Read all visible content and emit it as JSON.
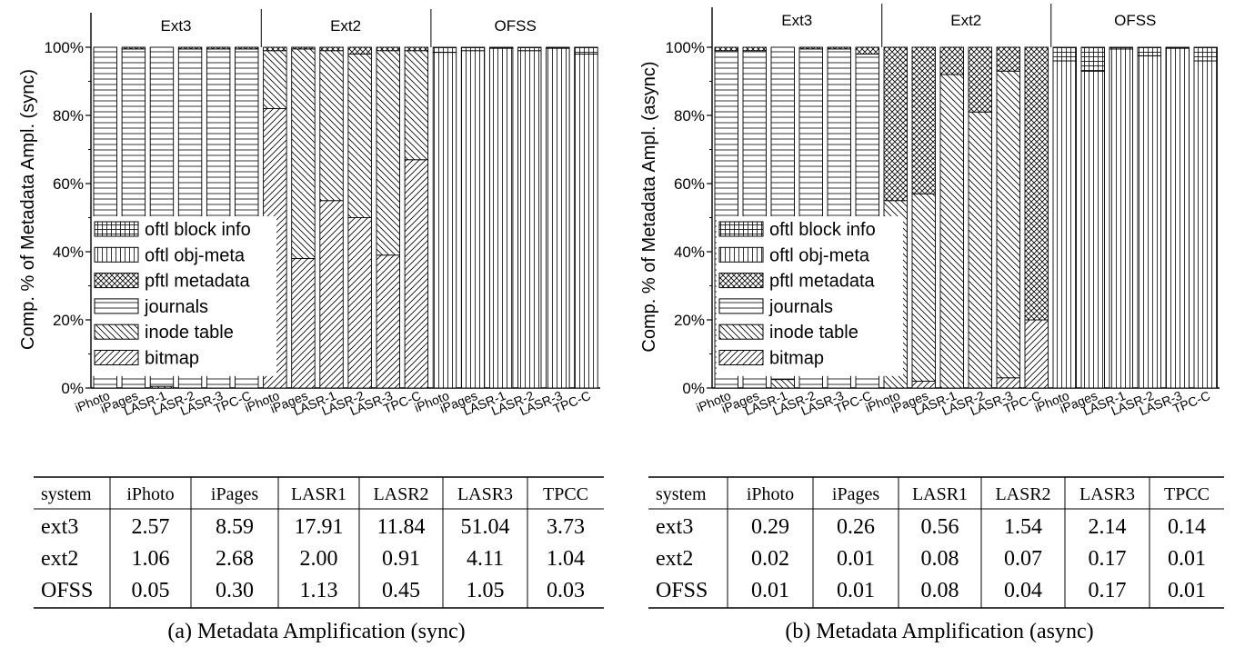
{
  "colors": {
    "ink": "#000000",
    "background": "#ffffff"
  },
  "chart_data": [
    {
      "type": "bar",
      "stacked": true,
      "panel": "a",
      "caption": "(a) Metadata Amplification (sync)",
      "ylabel": "Comp. % of Metadata Ampl. (sync)",
      "ylim": [
        0,
        100
      ],
      "yticks": [
        "0%",
        "20%",
        "40%",
        "60%",
        "80%",
        "100%"
      ],
      "groups": [
        "Ext3",
        "Ext2",
        "OFSS"
      ],
      "categories": [
        "iPhoto",
        "iPages",
        "LASR-1",
        "LASR-2",
        "LASR-3",
        "TPC-C"
      ],
      "legend": {
        "placement": "lower-left",
        "entries": [
          "oftl block info",
          "oftl obj-meta",
          "pftl metadata",
          "journals",
          "inode table",
          "bitmap"
        ]
      },
      "bars": [
        {
          "group": "Ext3",
          "category": "iPhoto",
          "bitmap": 0,
          "inode table": 0,
          "journals": 100,
          "pftl metadata": 0,
          "oftl obj-meta": 0,
          "oftl block info": 0
        },
        {
          "group": "Ext3",
          "category": "iPages",
          "bitmap": 0,
          "inode table": 0,
          "journals": 99.5,
          "pftl metadata": 0.5,
          "oftl obj-meta": 0,
          "oftl block info": 0
        },
        {
          "group": "Ext3",
          "category": "LASR-1",
          "bitmap": 0,
          "inode table": 0.5,
          "journals": 99.5,
          "pftl metadata": 0,
          "oftl obj-meta": 0,
          "oftl block info": 0
        },
        {
          "group": "Ext3",
          "category": "LASR-2",
          "bitmap": 0,
          "inode table": 0,
          "journals": 99.5,
          "pftl metadata": 0.5,
          "oftl obj-meta": 0,
          "oftl block info": 0
        },
        {
          "group": "Ext3",
          "category": "LASR-3",
          "bitmap": 0,
          "inode table": 0,
          "journals": 99.5,
          "pftl metadata": 0.5,
          "oftl obj-meta": 0,
          "oftl block info": 0
        },
        {
          "group": "Ext3",
          "category": "TPC-C",
          "bitmap": 0,
          "inode table": 0,
          "journals": 99.5,
          "pftl metadata": 0.5,
          "oftl obj-meta": 0,
          "oftl block info": 0
        },
        {
          "group": "Ext2",
          "category": "iPhoto",
          "bitmap": 82,
          "inode table": 17,
          "journals": 0,
          "pftl metadata": 1,
          "oftl obj-meta": 0,
          "oftl block info": 0
        },
        {
          "group": "Ext2",
          "category": "iPages",
          "bitmap": 38,
          "inode table": 61.5,
          "journals": 0,
          "pftl metadata": 0.5,
          "oftl obj-meta": 0,
          "oftl block info": 0
        },
        {
          "group": "Ext2",
          "category": "LASR-1",
          "bitmap": 55,
          "inode table": 44,
          "journals": 0,
          "pftl metadata": 1,
          "oftl obj-meta": 0,
          "oftl block info": 0
        },
        {
          "group": "Ext2",
          "category": "LASR-2",
          "bitmap": 50,
          "inode table": 48,
          "journals": 0,
          "pftl metadata": 2,
          "oftl obj-meta": 0,
          "oftl block info": 0
        },
        {
          "group": "Ext2",
          "category": "LASR-3",
          "bitmap": 39,
          "inode table": 60,
          "journals": 0,
          "pftl metadata": 1,
          "oftl obj-meta": 0,
          "oftl block info": 0
        },
        {
          "group": "Ext2",
          "category": "TPC-C",
          "bitmap": 67,
          "inode table": 32,
          "journals": 0,
          "pftl metadata": 1,
          "oftl obj-meta": 0,
          "oftl block info": 0
        },
        {
          "group": "OFSS",
          "category": "iPhoto",
          "bitmap": 0,
          "inode table": 0,
          "journals": 0,
          "pftl metadata": 0,
          "oftl obj-meta": 98.5,
          "oftl block info": 1.5
        },
        {
          "group": "OFSS",
          "category": "iPages",
          "bitmap": 0,
          "inode table": 0,
          "journals": 0,
          "pftl metadata": 0,
          "oftl obj-meta": 99,
          "oftl block info": 1
        },
        {
          "group": "OFSS",
          "category": "LASR-1",
          "bitmap": 0,
          "inode table": 0,
          "journals": 0,
          "pftl metadata": 0,
          "oftl obj-meta": 99.7,
          "oftl block info": 0.3
        },
        {
          "group": "OFSS",
          "category": "LASR-2",
          "bitmap": 0,
          "inode table": 0,
          "journals": 0,
          "pftl metadata": 0,
          "oftl obj-meta": 99,
          "oftl block info": 1
        },
        {
          "group": "OFSS",
          "category": "LASR-3",
          "bitmap": 0,
          "inode table": 0,
          "journals": 0,
          "pftl metadata": 0,
          "oftl obj-meta": 99.7,
          "oftl block info": 0.3
        },
        {
          "group": "OFSS",
          "category": "TPC-C",
          "bitmap": 0,
          "inode table": 0,
          "journals": 0,
          "pftl metadata": 0,
          "oftl obj-meta": 98,
          "oftl block info": 2
        }
      ]
    },
    {
      "type": "bar",
      "stacked": true,
      "panel": "b",
      "caption": "(b) Metadata Amplification (async)",
      "ylabel": "Comp. % of Metadata Ampl. (async)",
      "ylim": [
        0,
        100
      ],
      "yticks": [
        "0%",
        "20%",
        "40%",
        "60%",
        "80%",
        "100%"
      ],
      "groups": [
        "Ext3",
        "Ext2",
        "OFSS"
      ],
      "categories": [
        "iPhoto",
        "iPages",
        "LASR-1",
        "LASR-2",
        "LASR-3",
        "TPC-C"
      ],
      "legend": {
        "placement": "lower-left",
        "entries": [
          "oftl block info",
          "oftl obj-meta",
          "pftl metadata",
          "journals",
          "inode table",
          "bitmap"
        ]
      },
      "bars": [
        {
          "group": "Ext3",
          "category": "iPhoto",
          "bitmap": 0,
          "inode table": 0,
          "journals": 99,
          "pftl metadata": 1,
          "oftl obj-meta": 0,
          "oftl block info": 0
        },
        {
          "group": "Ext3",
          "category": "iPages",
          "bitmap": 0,
          "inode table": 0,
          "journals": 99,
          "pftl metadata": 1,
          "oftl obj-meta": 0,
          "oftl block info": 0
        },
        {
          "group": "Ext3",
          "category": "LASR-1",
          "bitmap": 0,
          "inode table": 2.5,
          "journals": 97.5,
          "pftl metadata": 0,
          "oftl obj-meta": 0,
          "oftl block info": 0
        },
        {
          "group": "Ext3",
          "category": "LASR-2",
          "bitmap": 0,
          "inode table": 0,
          "journals": 99.5,
          "pftl metadata": 0.5,
          "oftl obj-meta": 0,
          "oftl block info": 0
        },
        {
          "group": "Ext3",
          "category": "LASR-3",
          "bitmap": 0,
          "inode table": 0,
          "journals": 99.5,
          "pftl metadata": 0.5,
          "oftl obj-meta": 0,
          "oftl block info": 0
        },
        {
          "group": "Ext3",
          "category": "TPC-C",
          "bitmap": 0,
          "inode table": 0,
          "journals": 98,
          "pftl metadata": 2,
          "oftl obj-meta": 0,
          "oftl block info": 0
        },
        {
          "group": "Ext2",
          "category": "iPhoto",
          "bitmap": 0,
          "inode table": 55,
          "journals": 0,
          "pftl metadata": 45,
          "oftl obj-meta": 0,
          "oftl block info": 0
        },
        {
          "group": "Ext2",
          "category": "iPages",
          "bitmap": 2,
          "inode table": 55,
          "journals": 0,
          "pftl metadata": 43,
          "oftl obj-meta": 0,
          "oftl block info": 0
        },
        {
          "group": "Ext2",
          "category": "LASR-1",
          "bitmap": 0,
          "inode table": 92,
          "journals": 0,
          "pftl metadata": 8,
          "oftl obj-meta": 0,
          "oftl block info": 0
        },
        {
          "group": "Ext2",
          "category": "LASR-2",
          "bitmap": 0,
          "inode table": 81,
          "journals": 0,
          "pftl metadata": 19,
          "oftl obj-meta": 0,
          "oftl block info": 0
        },
        {
          "group": "Ext2",
          "category": "LASR-3",
          "bitmap": 3,
          "inode table": 90,
          "journals": 0,
          "pftl metadata": 7,
          "oftl obj-meta": 0,
          "oftl block info": 0
        },
        {
          "group": "Ext2",
          "category": "TPC-C",
          "bitmap": 20,
          "inode table": 0,
          "journals": 0,
          "pftl metadata": 80,
          "oftl obj-meta": 0,
          "oftl block info": 0
        },
        {
          "group": "OFSS",
          "category": "iPhoto",
          "bitmap": 0,
          "inode table": 0,
          "journals": 0,
          "pftl metadata": 0,
          "oftl obj-meta": 96,
          "oftl block info": 4
        },
        {
          "group": "OFSS",
          "category": "iPages",
          "bitmap": 0,
          "inode table": 0,
          "journals": 0,
          "pftl metadata": 0,
          "oftl obj-meta": 93,
          "oftl block info": 7
        },
        {
          "group": "OFSS",
          "category": "LASR-1",
          "bitmap": 0,
          "inode table": 0,
          "journals": 0,
          "pftl metadata": 0,
          "oftl obj-meta": 99.5,
          "oftl block info": 0.5
        },
        {
          "group": "OFSS",
          "category": "LASR-2",
          "bitmap": 0,
          "inode table": 0,
          "journals": 0,
          "pftl metadata": 0,
          "oftl obj-meta": 97.5,
          "oftl block info": 2.5
        },
        {
          "group": "OFSS",
          "category": "LASR-3",
          "bitmap": 0,
          "inode table": 0,
          "journals": 0,
          "pftl metadata": 0,
          "oftl obj-meta": 99.7,
          "oftl block info": 0.3
        },
        {
          "group": "OFSS",
          "category": "TPC-C",
          "bitmap": 0,
          "inode table": 0,
          "journals": 0,
          "pftl metadata": 0,
          "oftl obj-meta": 96,
          "oftl block info": 4
        }
      ]
    },
    {
      "type": "table",
      "panel": "a",
      "header": [
        "system",
        "iPhoto",
        "iPages",
        "LASR1",
        "LASR2",
        "LASR3",
        "TPCC"
      ],
      "rows": [
        [
          "ext3",
          "2.57",
          "8.59",
          "17.91",
          "11.84",
          "51.04",
          "3.73"
        ],
        [
          "ext2",
          "1.06",
          "2.68",
          "2.00",
          "0.91",
          "4.11",
          "1.04"
        ],
        [
          "OFSS",
          "0.05",
          "0.30",
          "1.13",
          "0.45",
          "1.05",
          "0.03"
        ]
      ]
    },
    {
      "type": "table",
      "panel": "b",
      "header": [
        "system",
        "iPhoto",
        "iPages",
        "LASR1",
        "LASR2",
        "LASR3",
        "TPCC"
      ],
      "rows": [
        [
          "ext3",
          "0.29",
          "0.26",
          "0.56",
          "1.54",
          "2.14",
          "0.14"
        ],
        [
          "ext2",
          "0.02",
          "0.01",
          "0.08",
          "0.07",
          "0.17",
          "0.01"
        ],
        [
          "OFSS",
          "0.01",
          "0.01",
          "0.08",
          "0.04",
          "0.17",
          "0.01"
        ]
      ]
    }
  ]
}
